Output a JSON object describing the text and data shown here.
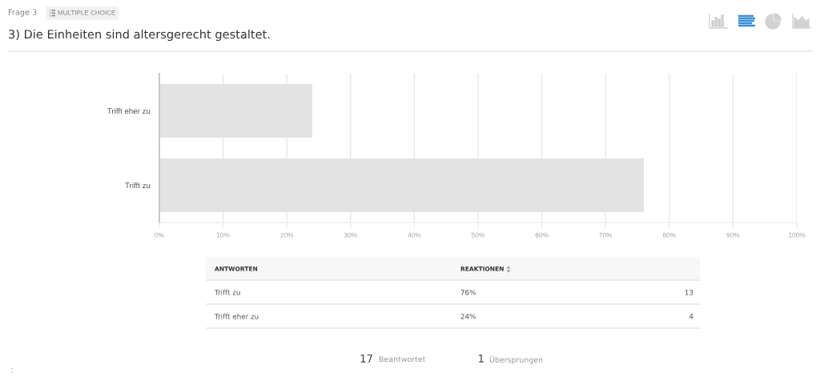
{
  "chart_data": {
    "type": "bar",
    "orientation": "horizontal",
    "title": "3) Die Einheiten sind altersgerecht gestaltet.",
    "categories": [
      "Trifft eher zu",
      "Trifft zu"
    ],
    "values": [
      24,
      76
    ],
    "color": "#e3e3e3",
    "xlim": [
      0,
      100
    ],
    "xticks": [
      {
        "value": 0,
        "label": "0%"
      },
      {
        "value": 10,
        "label": "10%"
      },
      {
        "value": 20,
        "label": "20%"
      },
      {
        "value": 30,
        "label": "30%"
      },
      {
        "value": 40,
        "label": "40%"
      },
      {
        "value": 50,
        "label": "50%"
      },
      {
        "value": 60,
        "label": "60%"
      },
      {
        "value": 70,
        "label": "70%"
      },
      {
        "value": 80,
        "label": "80%"
      },
      {
        "value": 90,
        "label": "90%"
      },
      {
        "value": 100,
        "label": "100%"
      }
    ],
    "grid": "x",
    "annotations": [
      "Frage 3",
      "MULTIPLE CHOICE",
      "ANTWORTEN",
      "REAKTIONEN",
      "76%",
      "13",
      "24%",
      "4",
      "17",
      "Beantwortet",
      "1",
      "Übersprungen"
    ]
  }
}
